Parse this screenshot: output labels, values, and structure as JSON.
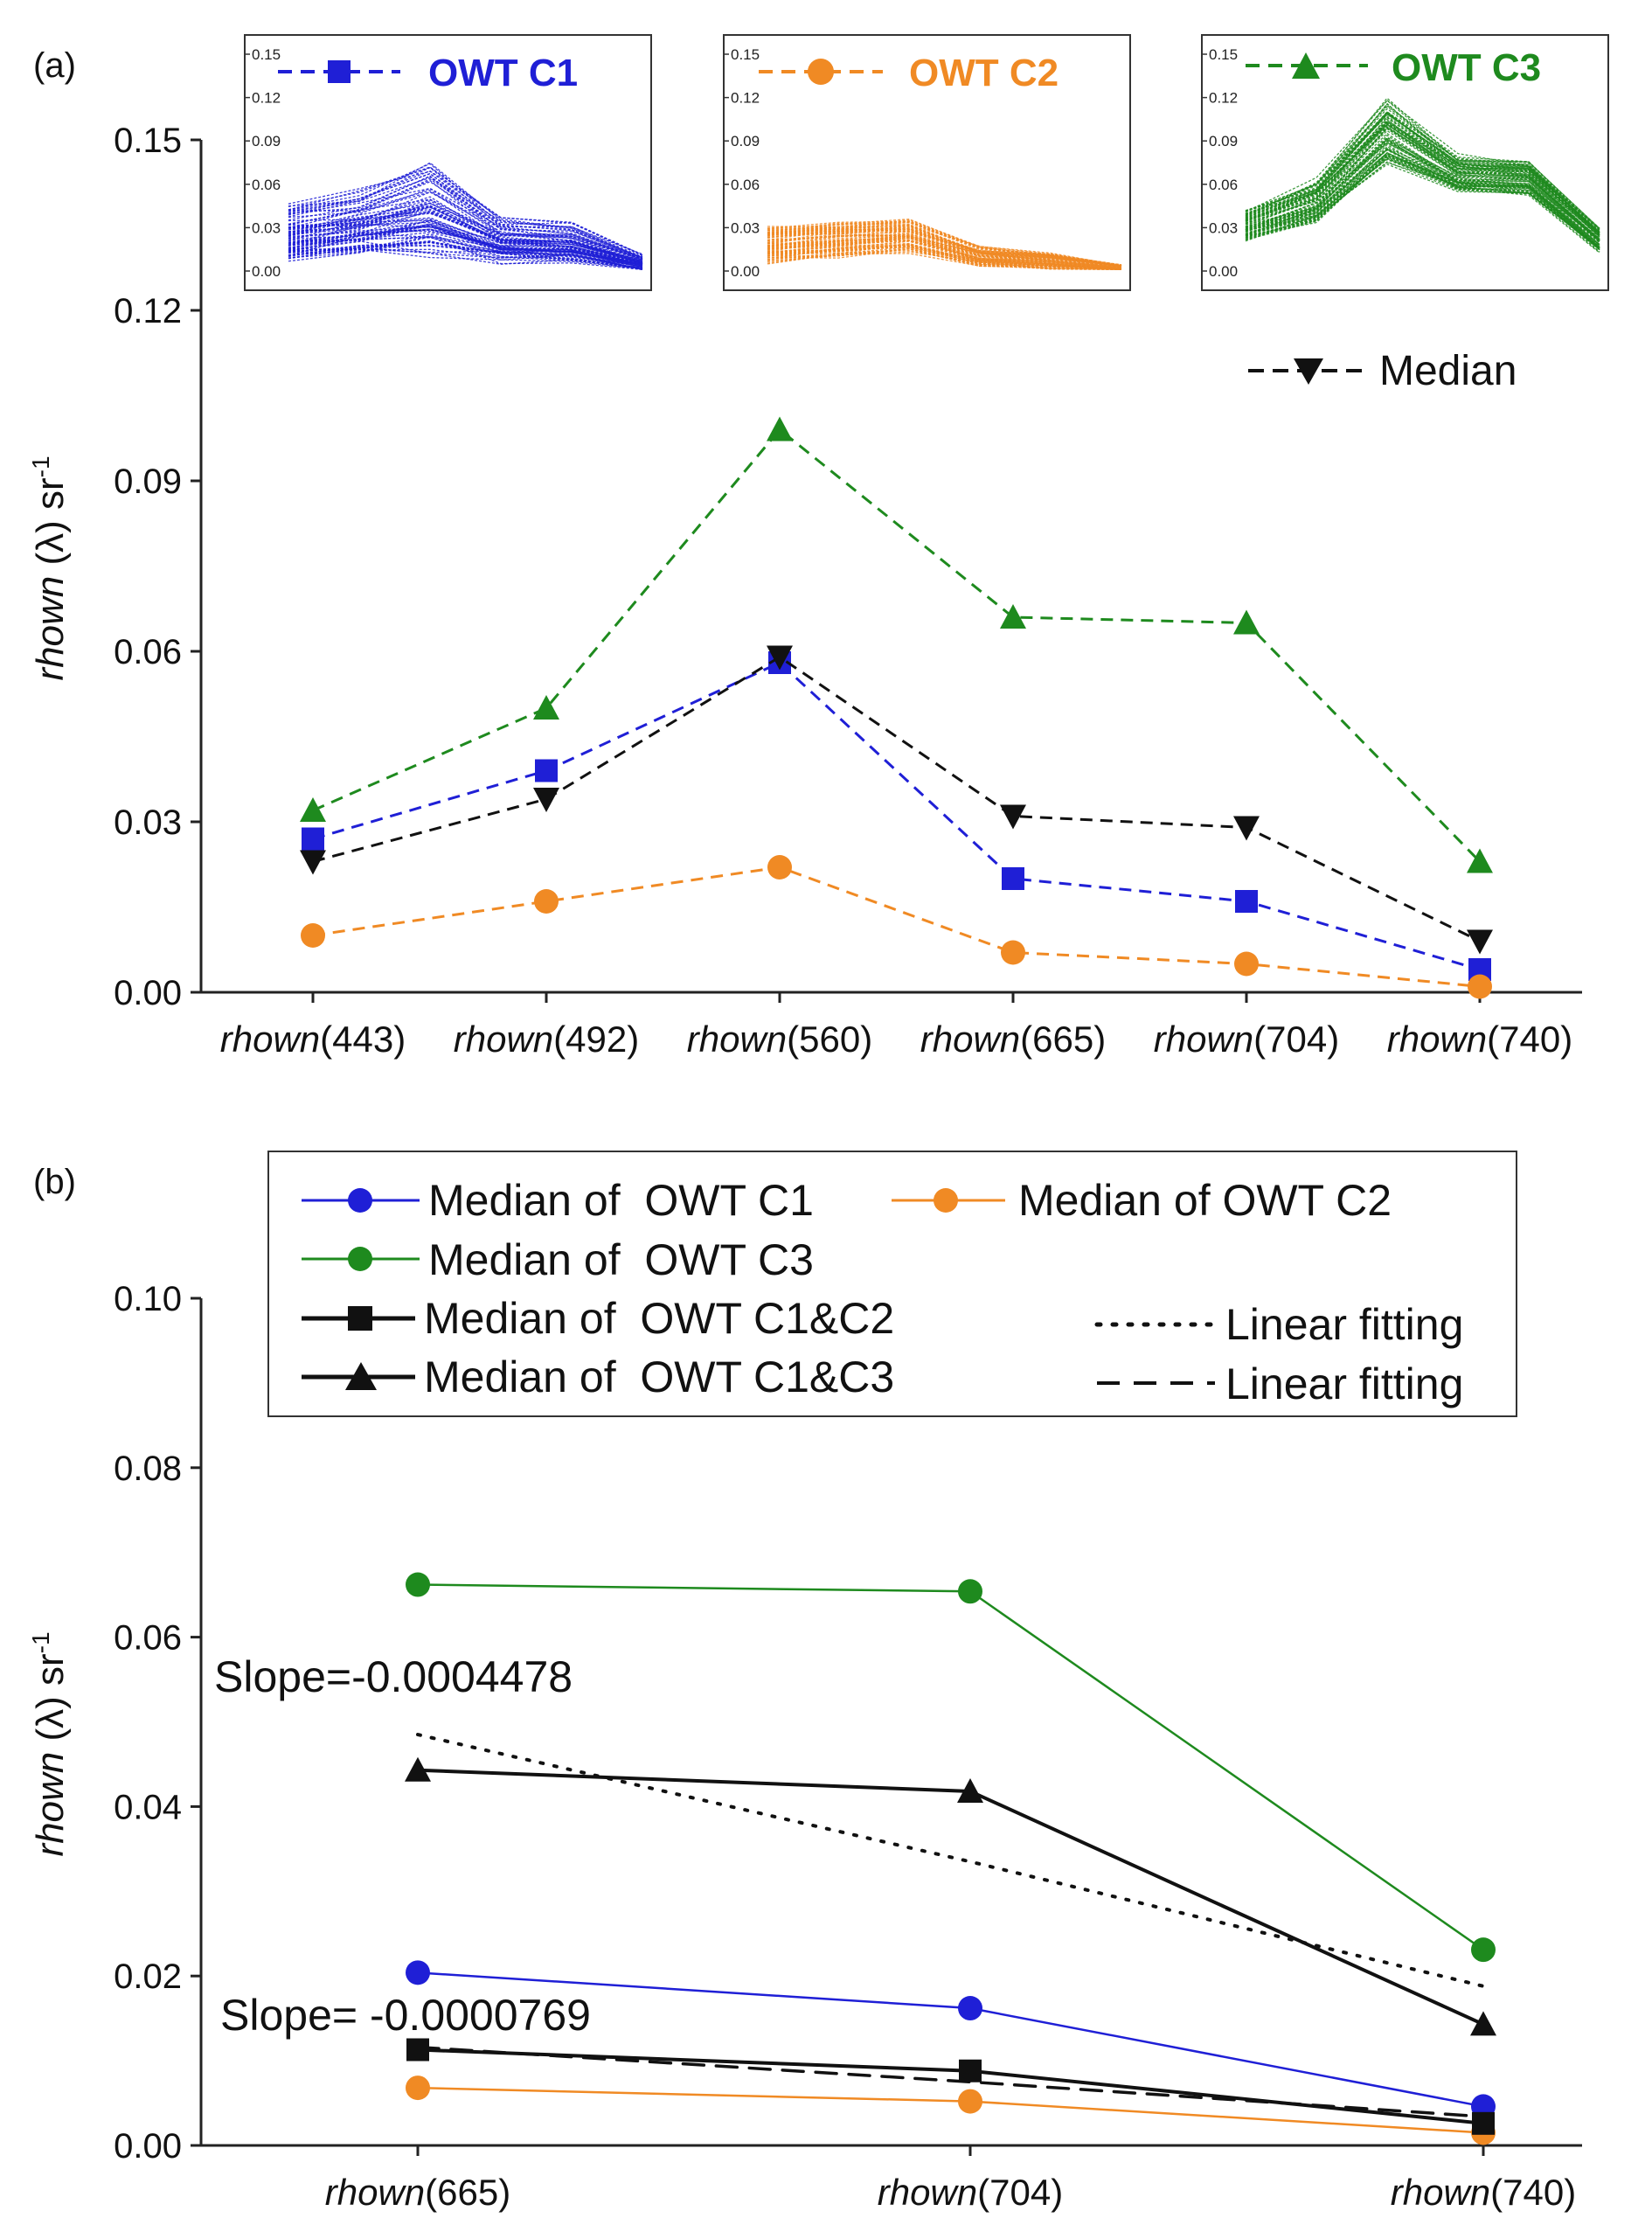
{
  "figure": {
    "colors": {
      "c1": "#1f1fd6",
      "c2": "#f08a24",
      "c3": "#1e8a1e",
      "median": "#111111",
      "axis": "#222222"
    }
  },
  "chart_data": [
    {
      "panel": "(a)",
      "type": "line",
      "line_style": "dashed",
      "categories_prefix": "rhown",
      "categories_suffix": [
        "(443)",
        "(492)",
        "(560)",
        "(665)",
        "(704)",
        "(740)"
      ],
      "ylabel_italic": "rhown",
      "ylabel_rest": " (λ) sr",
      "ylabel_sup": "-1",
      "ylim": [
        0,
        0.15
      ],
      "yticks": [
        "0.00",
        "0.03",
        "0.06",
        "0.09",
        "0.12",
        "0.15"
      ],
      "series": [
        {
          "name": "OWT C1",
          "marker": "square",
          "color_key": "c1",
          "values": [
            0.027,
            0.039,
            0.058,
            0.02,
            0.016,
            0.004
          ]
        },
        {
          "name": "OWT C2",
          "marker": "circle",
          "color_key": "c2",
          "values": [
            0.01,
            0.016,
            0.022,
            0.007,
            0.005,
            0.001
          ]
        },
        {
          "name": "OWT C3",
          "marker": "triangle-up",
          "color_key": "c3",
          "values": [
            0.032,
            0.05,
            0.099,
            0.066,
            0.065,
            0.023
          ]
        },
        {
          "name": "Median",
          "marker": "triangle-down",
          "color_key": "median",
          "values": [
            0.023,
            0.034,
            0.059,
            0.031,
            0.029,
            0.009
          ]
        }
      ],
      "insets": [
        {
          "label": "OWT C1",
          "color_key": "c1",
          "marker": "square",
          "ylim": [
            0,
            0.15
          ],
          "yticks": [
            "0.00",
            "0.03",
            "0.06",
            "0.09",
            "0.12",
            "0.15"
          ],
          "median": [
            0.027,
            0.034,
            0.045,
            0.022,
            0.02,
            0.006
          ],
          "spread": [
            0.018,
            0.02,
            0.03,
            0.014,
            0.012,
            0.005
          ]
        },
        {
          "label": "OWT C2",
          "color_key": "c2",
          "marker": "circle",
          "ylim": [
            0,
            0.15
          ],
          "yticks": [
            "0.00",
            "0.03",
            "0.06",
            "0.09",
            "0.12",
            "0.15"
          ],
          "median": [
            0.018,
            0.022,
            0.024,
            0.01,
            0.007,
            0.002
          ],
          "spread": [
            0.011,
            0.011,
            0.01,
            0.006,
            0.005,
            0.002
          ]
        },
        {
          "label": "OWT C3",
          "color_key": "c3",
          "marker": "triangle-up",
          "ylim": [
            0,
            0.15
          ],
          "yticks": [
            "0.00",
            "0.03",
            "0.06",
            "0.09",
            "0.12",
            "0.15"
          ],
          "median": [
            0.032,
            0.048,
            0.098,
            0.067,
            0.065,
            0.022
          ],
          "spread": [
            0.01,
            0.014,
            0.022,
            0.012,
            0.011,
            0.008
          ]
        }
      ]
    },
    {
      "panel": "(b)",
      "type": "line",
      "categories_prefix": "rhown",
      "categories_suffix": [
        "(665)",
        "(704)",
        "(740)"
      ],
      "ylabel_italic": "rhown",
      "ylabel_rest": " (λ) sr",
      "ylabel_sup": "-1",
      "ylim": [
        0,
        0.1
      ],
      "yticks": [
        "0.00",
        "0.02",
        "0.04",
        "0.06",
        "0.08",
        "0.10"
      ],
      "series": [
        {
          "name": "Median of  OWT C1",
          "marker": "circle",
          "color_key": "c1",
          "values": [
            0.0204,
            0.0162,
            0.0046
          ]
        },
        {
          "name": "Median of OWT C2",
          "marker": "circle",
          "color_key": "c2",
          "values": [
            0.0068,
            0.0052,
            0.0015
          ]
        },
        {
          "name": "Median of  OWT C3",
          "marker": "circle",
          "color_key": "c3",
          "values": [
            0.0662,
            0.0654,
            0.0231
          ]
        },
        {
          "name": "Median of  OWT C1&C2",
          "marker": "square",
          "color_key": "median",
          "values": [
            0.0113,
            0.0088,
            0.0026
          ]
        },
        {
          "name": "Median of  OWT C1&C3",
          "marker": "triangle-up",
          "color_key": "median",
          "values": [
            0.0443,
            0.0418,
            0.0143
          ]
        }
      ],
      "fits": [
        {
          "name": "Linear fitting",
          "style": "dotted",
          "values": [
            0.0485,
            0.0335,
            0.0188
          ]
        },
        {
          "name": "Linear fitting",
          "style": "dashed",
          "values": [
            0.0116,
            0.0075,
            0.0034
          ]
        }
      ],
      "annotations": [
        "Slope=-0.0004478",
        "Slope= -0.0000769"
      ]
    }
  ]
}
